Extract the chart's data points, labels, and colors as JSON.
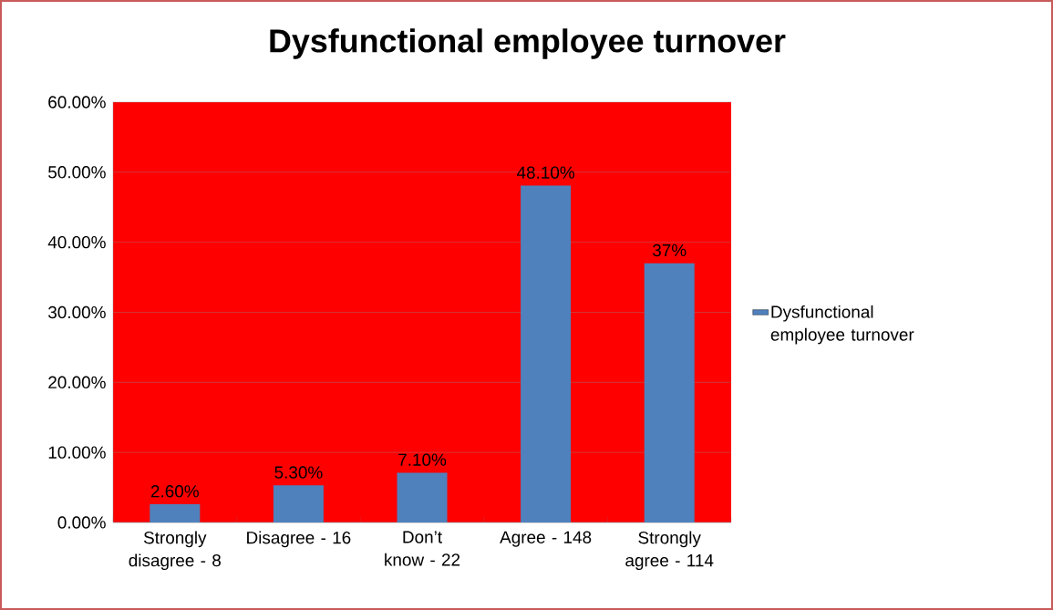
{
  "chart_data": {
    "type": "bar",
    "title": "Dysfunctional employee turnover",
    "categories": [
      "Strongly disagree - 8",
      "Disagree - 16",
      "Don’t know - 22",
      "Agree - 148",
      "Strongly agree - 114"
    ],
    "series": [
      {
        "name": "Dysfunctional employee turnover",
        "color": "#4f81bd",
        "values": [
          2.6,
          5.3,
          7.1,
          48.1,
          37
        ],
        "value_labels": [
          "2.60%",
          "5.30%",
          "7.10%",
          "48.10%",
          "37%"
        ]
      }
    ],
    "ylim": [
      0,
      60
    ],
    "yticks": [
      {
        "value": 0,
        "label": "0.00%"
      },
      {
        "value": 10,
        "label": "10.00%"
      },
      {
        "value": 20,
        "label": "20.00%"
      },
      {
        "value": 30,
        "label": "30.00%"
      },
      {
        "value": 40,
        "label": "40.00%"
      },
      {
        "value": 50,
        "label": "50.00%"
      },
      {
        "value": 60,
        "label": "60.00%"
      }
    ],
    "grid": "y",
    "legend": "right"
  }
}
